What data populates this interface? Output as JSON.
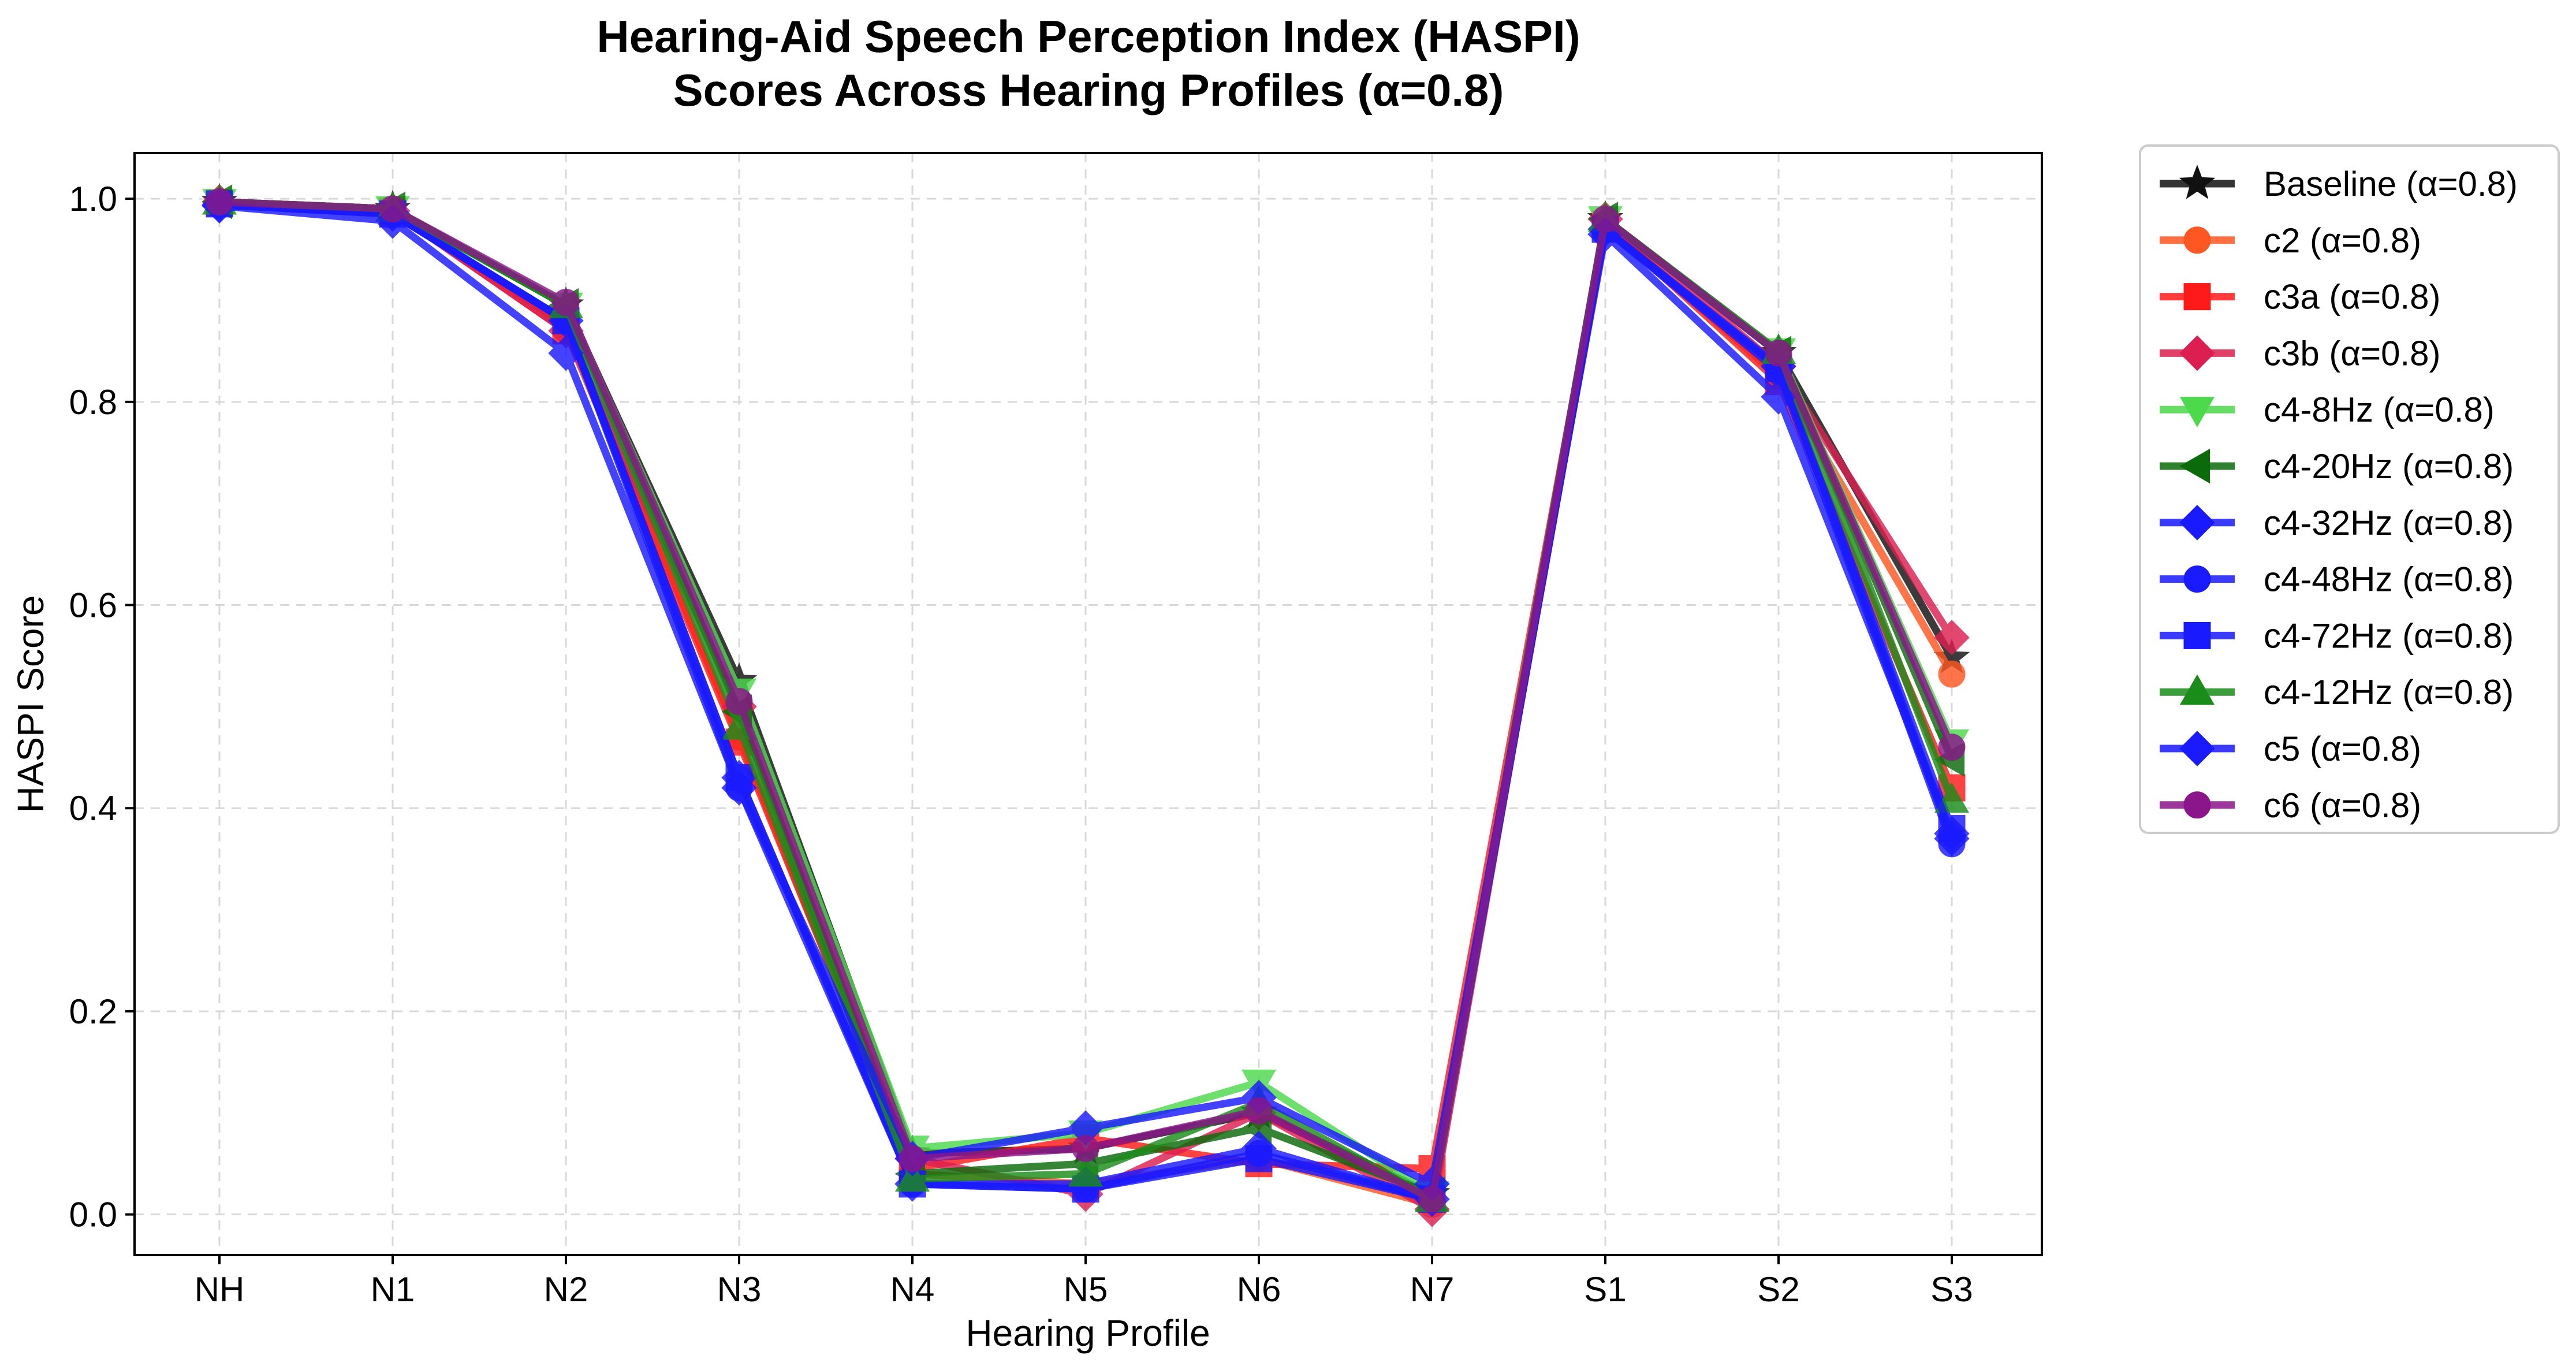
{
  "chart_data": {
    "type": "line",
    "title": "Hearing-Aid Speech Perception Index (HASPI)",
    "subtitle": "Scores Across Hearing Profiles (α=0.8)",
    "xlabel": "Hearing Profile",
    "ylabel": "HASPI Score",
    "ylim": [
      -0.04,
      1.045
    ],
    "yticks": [
      0.0,
      0.2,
      0.4,
      0.6,
      0.8,
      1.0
    ],
    "ytick_labels": [
      "0.0",
      "0.2",
      "0.4",
      "0.6",
      "0.8",
      "1.0"
    ],
    "grid": true,
    "legend_position": "outside-right",
    "categories": [
      "NH",
      "N1",
      "N2",
      "N3",
      "N4",
      "N5",
      "N6",
      "N7",
      "S1",
      "S2",
      "S3"
    ],
    "series": [
      {
        "name": "Baseline (α=0.8)",
        "color": "#111111",
        "marker": "star",
        "values": [
          0.997,
          0.99,
          0.895,
          0.525,
          0.06,
          0.065,
          0.1,
          0.02,
          0.98,
          0.848,
          0.548
        ]
      },
      {
        "name": "c2 (α=0.8)",
        "color": "#ff5722",
        "marker": "circle",
        "values": [
          0.996,
          0.988,
          0.875,
          0.47,
          0.04,
          0.03,
          0.055,
          0.01,
          0.975,
          0.825,
          0.532
        ]
      },
      {
        "name": "c3a (α=0.8)",
        "color": "#ff1a1a",
        "marker": "square",
        "values": [
          0.996,
          0.988,
          0.87,
          0.465,
          0.045,
          0.075,
          0.05,
          0.045,
          0.975,
          0.82,
          0.42
        ]
      },
      {
        "name": "c3b (α=0.8)",
        "color": "#dc1f50",
        "marker": "diamond",
        "values": [
          0.997,
          0.988,
          0.87,
          0.5,
          0.055,
          0.02,
          0.1,
          0.005,
          0.98,
          0.835,
          0.568
        ]
      },
      {
        "name": "c4-8Hz (α=0.8)",
        "color": "#4cd94c",
        "marker": "triangle-down",
        "values": [
          0.997,
          0.99,
          0.895,
          0.515,
          0.065,
          0.08,
          0.13,
          0.02,
          0.98,
          0.85,
          0.465
        ]
      },
      {
        "name": "c4-20Hz (α=0.8)",
        "color": "#0b6b0b",
        "marker": "triangle-left",
        "values": [
          0.997,
          0.99,
          0.895,
          0.495,
          0.04,
          0.05,
          0.085,
          0.02,
          0.98,
          0.848,
          0.448
        ]
      },
      {
        "name": "c4-32Hz (α=0.8)",
        "color": "#1a1aff",
        "marker": "diamond",
        "values": [
          0.994,
          0.985,
          0.88,
          0.43,
          0.03,
          0.03,
          0.065,
          0.015,
          0.97,
          0.835,
          0.37
        ]
      },
      {
        "name": "c4-48Hz (α=0.8)",
        "color": "#1a1aff",
        "marker": "circle",
        "values": [
          0.994,
          0.985,
          0.88,
          0.42,
          0.03,
          0.025,
          0.06,
          0.015,
          0.97,
          0.83,
          0.365
        ]
      },
      {
        "name": "c4-72Hz (α=0.8)",
        "color": "#1a1aff",
        "marker": "square",
        "values": [
          0.995,
          0.985,
          0.88,
          0.43,
          0.03,
          0.025,
          0.055,
          0.015,
          0.97,
          0.833,
          0.38
        ]
      },
      {
        "name": "c4-12Hz (α=0.8)",
        "color": "#1a8c1a",
        "marker": "triangle-up",
        "values": [
          0.997,
          0.99,
          0.895,
          0.48,
          0.035,
          0.04,
          0.11,
          0.015,
          0.98,
          0.85,
          0.408
        ]
      },
      {
        "name": "c5 (α=0.8)",
        "color": "#1a1aff",
        "marker": "diamond",
        "values": [
          0.993,
          0.978,
          0.848,
          0.42,
          0.055,
          0.085,
          0.115,
          0.03,
          0.965,
          0.805,
          0.375
        ]
      },
      {
        "name": "c6 (α=0.8)",
        "color": "#8b168b",
        "marker": "circle",
        "values": [
          0.997,
          0.99,
          0.898,
          0.505,
          0.055,
          0.065,
          0.102,
          0.015,
          0.98,
          0.848,
          0.46
        ]
      }
    ]
  }
}
